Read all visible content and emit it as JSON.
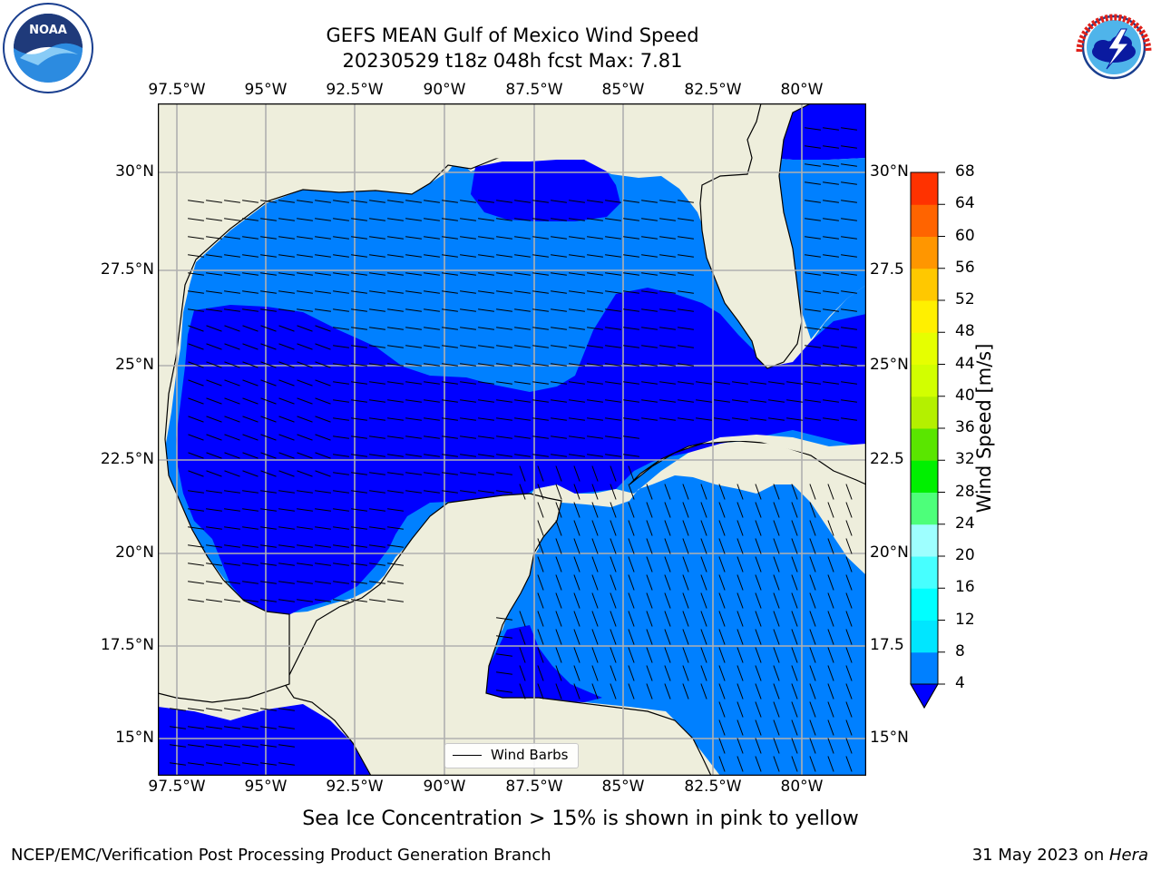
{
  "header": {
    "title_line1": "GEFS MEAN Gulf of Mexico Wind Speed",
    "title_line2": "20230529 t18z 048h fcst   Max: 7.81"
  },
  "logos": {
    "left": "noaa-logo",
    "right": "national-weather-service-logo"
  },
  "map": {
    "lon_ticks": [
      "97.5°W",
      "95°W",
      "92.5°W",
      "90°W",
      "87.5°W",
      "85°W",
      "82.5°W",
      "80°W"
    ],
    "lat_ticks": [
      "30°N",
      "27.5°N",
      "25°N",
      "22.5°N",
      "20°N",
      "17.5°N",
      "15°N"
    ],
    "right_lat_ticks": [
      "30°N",
      "27.5",
      "25°N",
      "22.5",
      "20°N",
      "17.5",
      "15°N"
    ],
    "land_color": "#eeeedc",
    "ocean_dark": "#0000ff",
    "ocean_light": "#0080ff",
    "legend": {
      "label": "Wind Barbs"
    }
  },
  "colorbar": {
    "label": "Wind Speed [m/s]",
    "ticks": [
      "4",
      "8",
      "12",
      "16",
      "20",
      "24",
      "28",
      "32",
      "36",
      "40",
      "44",
      "48",
      "52",
      "56",
      "60",
      "64",
      "68"
    ],
    "colors": [
      "#0080ff",
      "#00e6ff",
      "#00ffff",
      "#47ffff",
      "#9effff",
      "#4dff7a",
      "#00f000",
      "#5ae600",
      "#b4f000",
      "#d2ff00",
      "#e6ff00",
      "#fff000",
      "#ffc800",
      "#ff9600",
      "#ff6400",
      "#ff3200"
    ],
    "under_color": "#0000ff"
  },
  "notes": {
    "sea_ice": "Sea Ice Concentration > 15% is shown in pink to yellow"
  },
  "footer": {
    "left": "NCEP/EMC/Verification Post Processing Product Generation Branch",
    "right_date": "31 May 2023 on ",
    "right_machine": "Hera"
  }
}
